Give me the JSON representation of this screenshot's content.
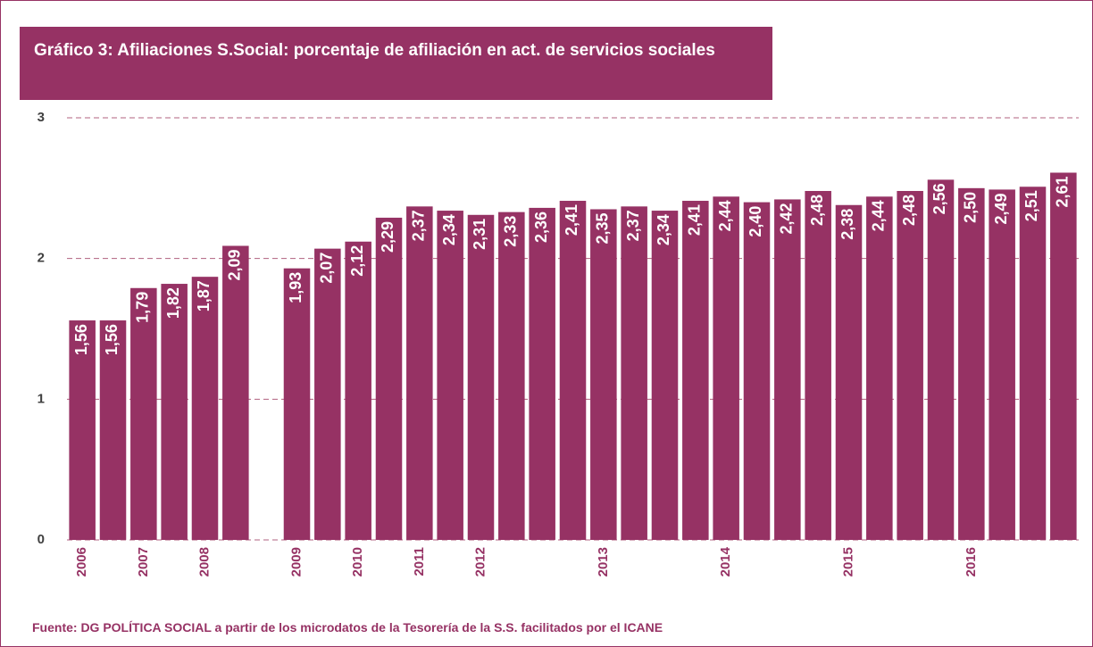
{
  "chart_data": {
    "type": "bar",
    "title": "Gráfico 3: Afiliaciones S.Social: porcentaje de afiliación en act. de servicios sociales",
    "source": "Fuente: DG POLÍTICA SOCIAL a partir de los microdatos de la Tesorería de la S.S. facilitados por el ICANE",
    "categories": [
      "2006",
      null,
      "2007",
      null,
      "2008",
      null,
      null,
      "2009",
      null,
      "2010",
      null,
      "2011",
      null,
      "2012",
      null,
      null,
      null,
      "2013",
      null,
      null,
      null,
      "2014",
      null,
      null,
      null,
      "2015",
      null,
      null,
      null,
      "2016",
      null,
      null,
      null
    ],
    "values": [
      1.56,
      1.56,
      1.79,
      1.82,
      1.87,
      2.09,
      null,
      1.93,
      2.07,
      2.12,
      2.29,
      2.37,
      2.34,
      2.31,
      2.33,
      2.36,
      2.41,
      2.35,
      2.37,
      2.34,
      2.41,
      2.44,
      2.4,
      2.42,
      2.48,
      2.38,
      2.44,
      2.48,
      2.56,
      2.5,
      2.49,
      2.51,
      2.61
    ],
    "value_labels": [
      "1,56",
      "1,56",
      "1,79",
      "1,82",
      "1,87",
      "2,09",
      null,
      "1,93",
      "2,07",
      "2,12",
      "2,29",
      "2,37",
      "2,34",
      "2,31",
      "2,33",
      "2,36",
      "2,41",
      "2,35",
      "2,37",
      "2,34",
      "2,41",
      "2,44",
      "2,40",
      "2,42",
      "2,48",
      "2,38",
      "2,44",
      "2,48",
      "2,56",
      "2,50",
      "2,49",
      "2,51",
      "2,61"
    ],
    "color": "#963264",
    "ylim": [
      0,
      3
    ],
    "yticks": [
      0,
      1,
      2,
      3
    ],
    "grid": true
  }
}
